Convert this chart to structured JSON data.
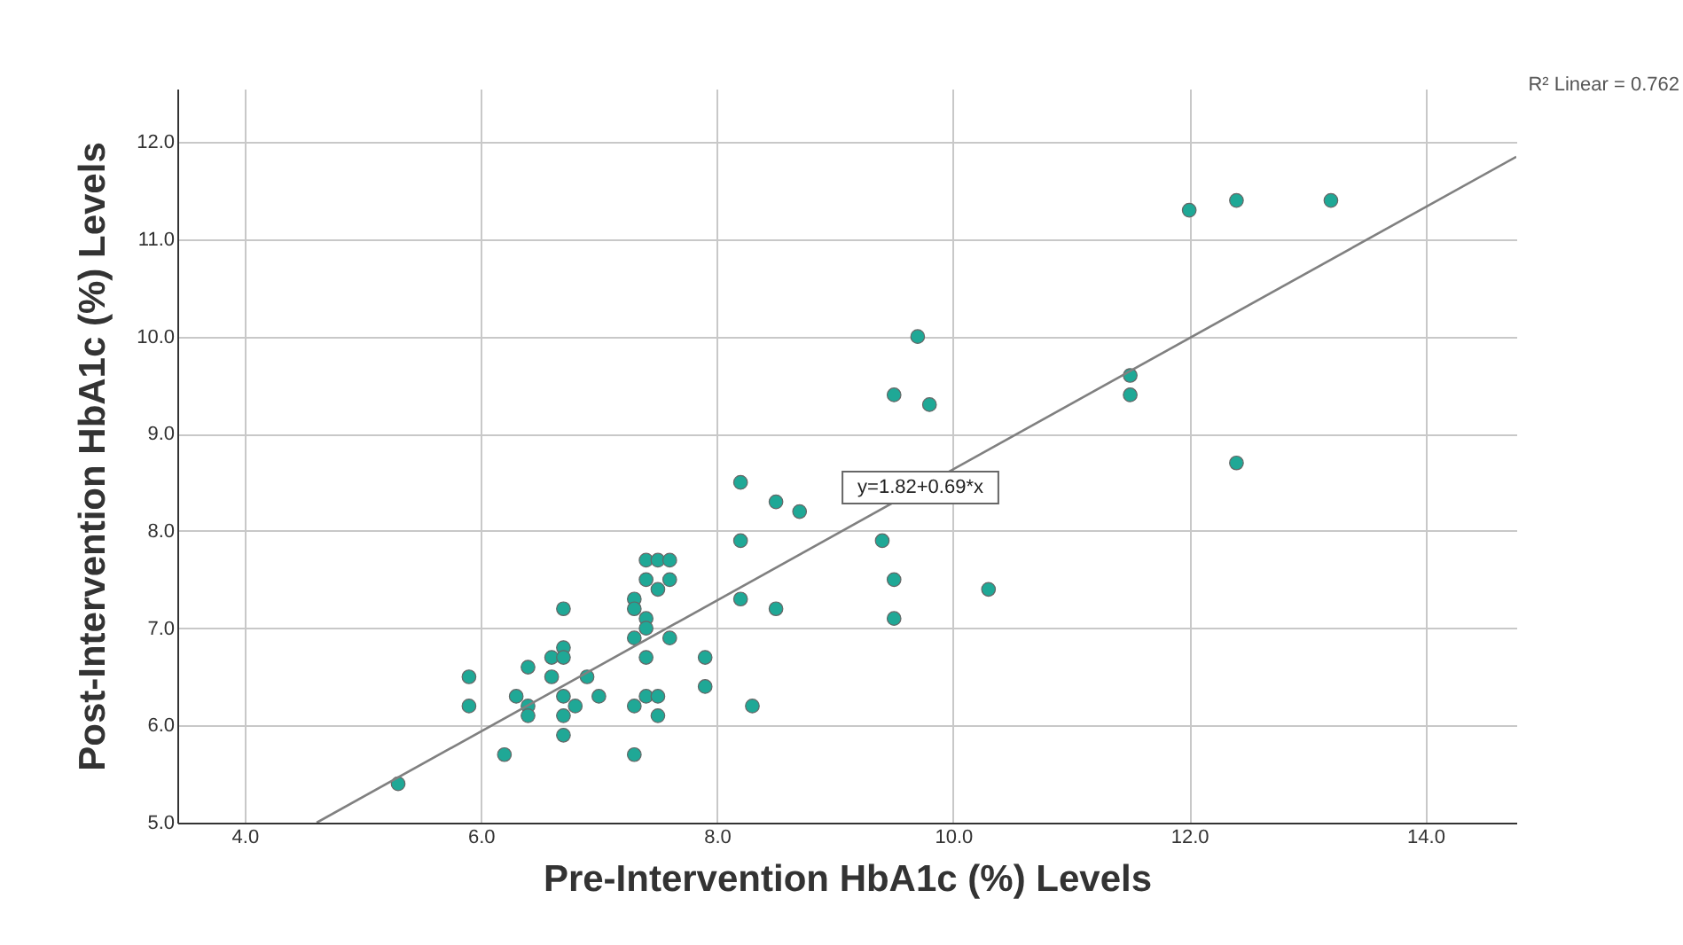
{
  "chart_data": {
    "type": "scatter",
    "xlabel": "Pre-Intervention HbA1c (%) Levels",
    "ylabel": "Post-Intervention HbA1c (%) Levels",
    "xlim": [
      3.43,
      14.77
    ],
    "ylim": [
      5.0,
      12.55
    ],
    "xticks": [
      {
        "value": 4,
        "label": "4.0"
      },
      {
        "value": 6,
        "label": "6.0"
      },
      {
        "value": 8,
        "label": "8.0"
      },
      {
        "value": 10,
        "label": "10.0"
      },
      {
        "value": 12,
        "label": "12.0"
      },
      {
        "value": 14,
        "label": "14.0"
      }
    ],
    "yticks": [
      {
        "value": 5,
        "label": "5.0"
      },
      {
        "value": 6,
        "label": "6.0"
      },
      {
        "value": 7,
        "label": "7.0"
      },
      {
        "value": 8,
        "label": "8.0"
      },
      {
        "value": 9,
        "label": "9.0"
      },
      {
        "value": 10,
        "label": "10.0"
      },
      {
        "value": 11,
        "label": "11.0"
      },
      {
        "value": 12,
        "label": "12.0"
      }
    ],
    "grid": true,
    "marker": "circle",
    "series": [
      {
        "color": "#1fa896",
        "x": [
          5.3,
          5.9,
          5.9,
          6.2,
          6.3,
          6.4,
          6.4,
          6.4,
          6.6,
          6.6,
          6.7,
          6.7,
          6.7,
          6.7,
          6.7,
          6.7,
          6.8,
          6.9,
          7.0,
          7.3,
          7.3,
          7.3,
          7.3,
          7.3,
          7.4,
          7.4,
          7.4,
          7.4,
          7.4,
          7.4,
          7.5,
          7.5,
          7.5,
          7.5,
          7.6,
          7.6,
          7.6,
          7.9,
          7.9,
          8.2,
          8.2,
          8.2,
          8.3,
          8.5,
          8.5,
          8.7,
          9.4,
          9.5,
          9.5,
          9.5,
          9.7,
          9.8,
          10.3,
          11.5,
          11.5,
          12.0,
          12.4,
          12.4,
          13.2
        ],
        "values": [
          5.4,
          6.5,
          6.2,
          5.7,
          6.3,
          6.6,
          6.2,
          6.1,
          6.7,
          6.5,
          7.2,
          6.8,
          6.7,
          6.3,
          6.1,
          5.9,
          6.2,
          6.5,
          6.3,
          7.3,
          7.2,
          6.9,
          6.2,
          5.7,
          7.7,
          7.5,
          7.1,
          7.0,
          6.7,
          6.3,
          7.7,
          7.4,
          6.3,
          6.1,
          7.7,
          7.5,
          6.9,
          6.7,
          6.4,
          8.5,
          7.9,
          7.3,
          6.2,
          8.3,
          7.2,
          8.2,
          7.9,
          9.4,
          7.5,
          7.1,
          10.0,
          9.3,
          7.4,
          9.6,
          9.4,
          11.3,
          11.4,
          8.7,
          11.4
        ]
      },
      {
        "type": "line",
        "color": "#808080",
        "marker": "none",
        "x": [
          4.61,
          14.77
        ],
        "values": [
          5.0,
          11.85
        ]
      }
    ],
    "annotations": [
      "y=1.82+0.69*x",
      "R² Linear = 0.762"
    ]
  }
}
